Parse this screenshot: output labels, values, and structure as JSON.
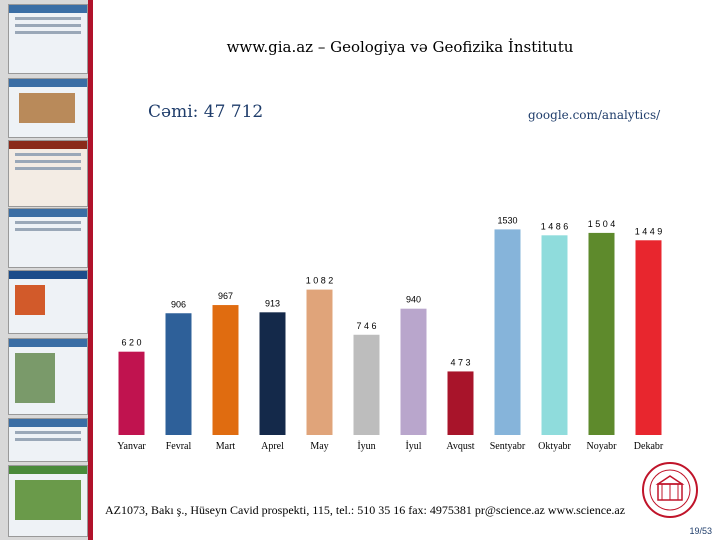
{
  "title": "www.gia.az – Geologiya və Geofizika İnstitutu",
  "total": "Cəmi: 47 712",
  "source": "google.com/analytics/",
  "footer": "AZ1073, Bakı ş., Hüseyn Cavid prospekti, 115, tel.: 510 35 16  fax: 4975381  pr@science.az  www.science.az",
  "page_number": "19/53",
  "chart_data": {
    "type": "bar",
    "title": "",
    "xlabel": "",
    "ylabel": "",
    "ylim": [
      0,
      1600
    ],
    "grid": false,
    "categories": [
      "Yanvar",
      "Fevral",
      "Mart",
      "Aprel",
      "May",
      "İyun",
      "İyul",
      "Avqust",
      "Sentyabr",
      "Oktyabr",
      "Noyabr",
      "Dekabr"
    ],
    "values": [
      620,
      906,
      967,
      913,
      1082,
      746,
      940,
      473,
      1530,
      1486,
      1504,
      1449
    ],
    "value_labels": [
      "6 2 0",
      "906",
      "967",
      "913",
      "1 0 8 2",
      "7 4 6",
      "940",
      "4 7 3",
      "1530",
      "1 4 8 6",
      "1 5 0 4",
      "1 4 4 9"
    ],
    "colors": [
      "#c0134f",
      "#2e6099",
      "#e06c10",
      "#14294a",
      "#e0a47a",
      "#bdbdbd",
      "#b9a6cc",
      "#a8142a",
      "#86b4da",
      "#8fdcdc",
      "#5e8a2c",
      "#e8262e"
    ]
  }
}
